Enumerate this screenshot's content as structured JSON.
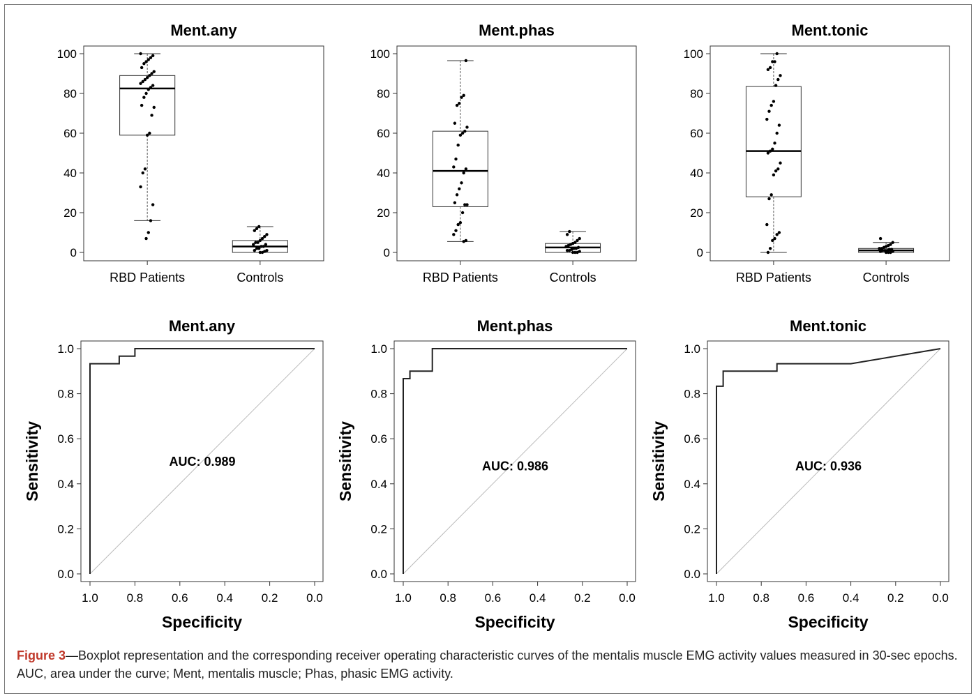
{
  "caption": {
    "label": "Figure 3",
    "text": "—Boxplot representation and the corresponding receiver operating characteristic curves of the mentalis muscle EMG activity values measured in 30-sec epochs. AUC, area under the curve; Ment, mentalis muscle; Phas, phasic EMG activity."
  },
  "chart_data": [
    {
      "type": "box",
      "title": "Ment.any",
      "categories": [
        "RBD Patients",
        "Controls"
      ],
      "ylim": [
        0,
        100
      ],
      "yticks": [
        0,
        20,
        40,
        60,
        80,
        100
      ],
      "boxes": [
        {
          "name": "RBD Patients",
          "whisker_low": 16,
          "q1": 59,
          "median": 82.5,
          "q3": 89,
          "whisker_high": 100,
          "points": [
            100,
            99,
            98,
            97,
            96,
            95,
            93,
            91,
            90,
            89,
            88,
            87,
            86,
            85,
            84,
            83,
            82,
            80,
            78,
            74,
            73,
            69,
            60,
            59,
            42,
            40,
            33,
            24,
            16,
            10,
            7
          ]
        },
        {
          "name": "Controls",
          "whisker_low": 0,
          "q1": 0,
          "median": 3,
          "q3": 6,
          "whisker_high": 13,
          "points": [
            13,
            12,
            11,
            9,
            8,
            7,
            6,
            5,
            5,
            4,
            4,
            3,
            3,
            2,
            2,
            1,
            1,
            0.5,
            0,
            0
          ]
        }
      ]
    },
    {
      "type": "box",
      "title": "Ment.phas",
      "categories": [
        "RBD Patients",
        "Controls"
      ],
      "ylim": [
        0,
        100
      ],
      "yticks": [
        0,
        20,
        40,
        60,
        80,
        100
      ],
      "boxes": [
        {
          "name": "RBD Patients",
          "whisker_low": 5.5,
          "q1": 23,
          "median": 41,
          "q3": 61,
          "whisker_high": 96.5,
          "points": [
            96.5,
            79,
            78,
            75,
            74,
            65,
            63,
            61,
            60,
            59,
            54,
            47,
            43,
            42,
            40,
            35,
            32,
            29,
            25,
            24,
            24,
            20,
            15,
            14,
            11,
            9,
            6,
            5.5
          ]
        },
        {
          "name": "Controls",
          "whisker_low": 0,
          "q1": 0,
          "median": 2.5,
          "q3": 4.5,
          "whisker_high": 10.5,
          "points": [
            10.5,
            9,
            7,
            6,
            5,
            4.5,
            4,
            3.5,
            3,
            2.5,
            2,
            2,
            1.5,
            1,
            1,
            0.5,
            0,
            0,
            0
          ]
        }
      ]
    },
    {
      "type": "box",
      "title": "Ment.tonic",
      "categories": [
        "RBD Patients",
        "Controls"
      ],
      "ylim": [
        0,
        100
      ],
      "yticks": [
        0,
        20,
        40,
        60,
        80,
        100
      ],
      "boxes": [
        {
          "name": "RBD Patients",
          "whisker_low": 0,
          "q1": 28,
          "median": 51,
          "q3": 83.5,
          "whisker_high": 100,
          "points": [
            100,
            96,
            96,
            93,
            92,
            89,
            87,
            84,
            76,
            74,
            71,
            67,
            64,
            60,
            55,
            52,
            51,
            50,
            45,
            42,
            41,
            39,
            29,
            27,
            14,
            10,
            9,
            7,
            6,
            2,
            0
          ]
        },
        {
          "name": "Controls",
          "whisker_low": 0,
          "q1": 0,
          "median": 1,
          "q3": 2,
          "whisker_high": 5,
          "points": [
            7,
            5,
            4,
            3.5,
            3,
            2.5,
            2,
            2,
            1.5,
            1.5,
            1,
            1,
            1,
            0.5,
            0.5,
            0,
            0,
            0
          ]
        }
      ]
    },
    {
      "type": "line",
      "title": "Ment.any",
      "xlabel": "Specificity",
      "ylabel": "Sensitivity",
      "xlim": [
        1.0,
        0.0
      ],
      "ylim": [
        0,
        1.0
      ],
      "xticks": [
        "1.0",
        "0.8",
        "0.6",
        "0.4",
        "0.2",
        "0.0"
      ],
      "yticks": [
        "0.0",
        "0.2",
        "0.4",
        "0.6",
        "0.8",
        "1.0"
      ],
      "annotation": "AUC: 0.989",
      "annotation_at": [
        0.5,
        0.48
      ],
      "series": [
        {
          "x": [
            1.0,
            1.0,
            0.87,
            0.87,
            0.8,
            0.8,
            0.0
          ],
          "y": [
            0.0,
            0.933,
            0.933,
            0.967,
            0.967,
            1.0,
            1.0
          ]
        },
        {
          "x": [
            1.0,
            0.0
          ],
          "y": [
            0.0,
            1.0
          ]
        }
      ]
    },
    {
      "type": "line",
      "title": "Ment.phas",
      "xlabel": "Specificity",
      "ylabel": "Sensitivity",
      "xlim": [
        1.0,
        0.0
      ],
      "ylim": [
        0,
        1.0
      ],
      "xticks": [
        "1.0",
        "0.8",
        "0.6",
        "0.4",
        "0.2",
        "0.0"
      ],
      "yticks": [
        "0.0",
        "0.2",
        "0.4",
        "0.6",
        "0.8",
        "1.0"
      ],
      "annotation": "AUC: 0.986",
      "annotation_at": [
        0.5,
        0.46
      ],
      "series": [
        {
          "x": [
            1.0,
            1.0,
            0.97,
            0.97,
            0.93,
            0.93,
            0.87,
            0.87,
            0.0
          ],
          "y": [
            0.0,
            0.867,
            0.867,
            0.9,
            0.9,
            0.9,
            0.9,
            1.0,
            1.0
          ]
        },
        {
          "x": [
            1.0,
            0.0
          ],
          "y": [
            0.0,
            1.0
          ]
        }
      ]
    },
    {
      "type": "line",
      "title": "Ment.tonic",
      "xlabel": "Specificity",
      "ylabel": "Sensitivity",
      "xlim": [
        1.0,
        0.0
      ],
      "ylim": [
        0,
        1.0
      ],
      "xticks": [
        "1.0",
        "0.8",
        "0.6",
        "0.4",
        "0.2",
        "0.0"
      ],
      "yticks": [
        "0.0",
        "0.2",
        "0.4",
        "0.6",
        "0.8",
        "1.0"
      ],
      "annotation": "AUC: 0.936",
      "annotation_at": [
        0.5,
        0.46
      ],
      "series": [
        {
          "x": [
            1.0,
            1.0,
            0.97,
            0.97,
            0.73,
            0.73,
            0.4,
            0.0
          ],
          "y": [
            0.0,
            0.833,
            0.833,
            0.9,
            0.9,
            0.933,
            0.933,
            1.0
          ]
        },
        {
          "x": [
            1.0,
            0.0
          ],
          "y": [
            0.0,
            1.0
          ]
        }
      ]
    }
  ]
}
